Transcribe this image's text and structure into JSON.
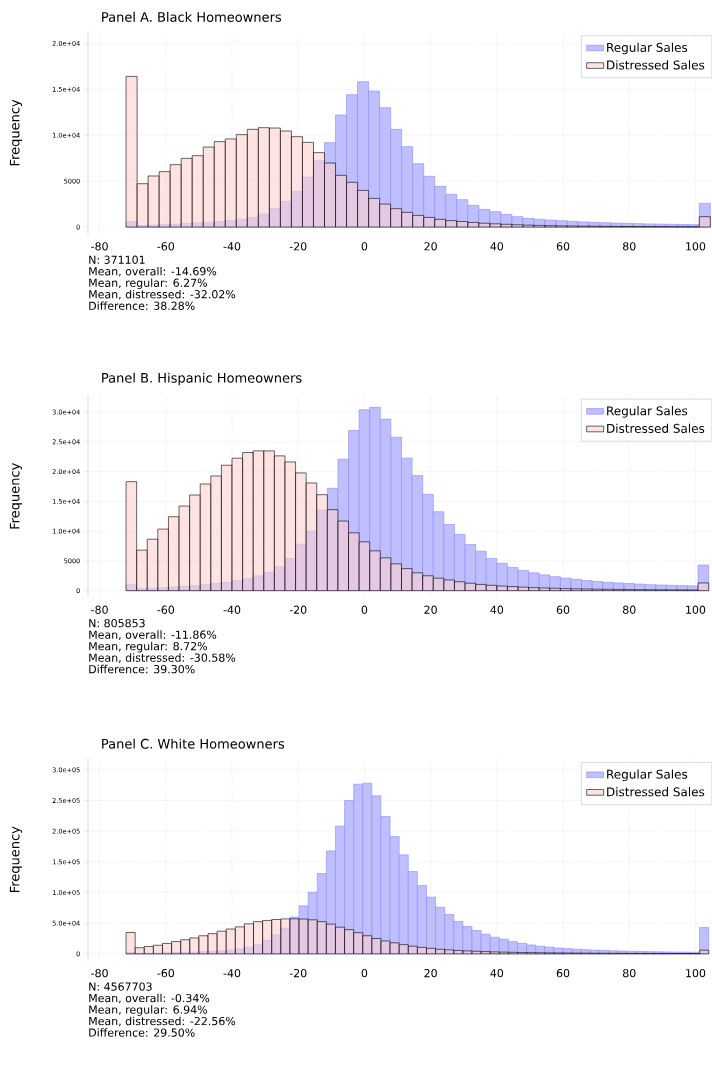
{
  "chart_data": [
    {
      "type": "histogram",
      "title": "Panel A. Black Homeowners",
      "ylabel": "Frequency",
      "bins": [
        -72,
        -68.67,
        -65.34,
        -62.01,
        -58.68,
        -55.35,
        -52.02,
        -48.69,
        -45.36,
        -42.03,
        -38.7,
        -35.37,
        -32.04,
        -28.71,
        -25.38,
        -22.05,
        -18.72,
        -15.39,
        -12.06,
        -8.73,
        -5.4,
        -2.07,
        1.26,
        4.59,
        7.92,
        11.25,
        14.58,
        17.91,
        21.24,
        24.57,
        27.9,
        31.23,
        34.56,
        37.89,
        41.22,
        44.55,
        47.88,
        51.21,
        54.54,
        57.87,
        61.2,
        64.53,
        67.86,
        71.19,
        74.52,
        77.85,
        81.18,
        84.51,
        87.84,
        91.17,
        94.5,
        97.83,
        101.16,
        104.49
      ],
      "series": [
        {
          "name": "Regular Sales",
          "color": "#bfbfff",
          "values": [
            600,
            180,
            220,
            270,
            320,
            380,
            450,
            520,
            600,
            700,
            840,
            1050,
            1420,
            2030,
            2800,
            3890,
            5450,
            7230,
            9190,
            12200,
            14410,
            15830,
            14810,
            13000,
            10640,
            8750,
            6900,
            5520,
            4430,
            3560,
            2980,
            2360,
            1920,
            1670,
            1380,
            1130,
            940,
            840,
            760,
            690,
            620,
            560,
            510,
            470,
            430,
            400,
            370,
            340,
            320,
            300,
            280,
            270,
            2580
          ]
        },
        {
          "name": "Distressed Sales",
          "color": "#ffd0d0",
          "values": [
            16400,
            4720,
            5560,
            6030,
            6790,
            7480,
            7770,
            8710,
            9300,
            9590,
            10060,
            10640,
            10820,
            10780,
            10460,
            9840,
            9220,
            8100,
            6970,
            5630,
            4870,
            3990,
            3120,
            2500,
            2000,
            1600,
            1270,
            1050,
            840,
            700,
            600,
            500,
            420,
            350,
            300,
            250,
            210,
            180,
            150,
            130,
            110,
            100,
            90,
            80,
            70,
            60,
            55,
            50,
            45,
            40,
            35,
            30,
            1130
          ]
        }
      ],
      "xlim": [
        -83.5,
        105
      ],
      "xticks": [
        -80,
        -60,
        -40,
        -20,
        0,
        20,
        40,
        60,
        80,
        100
      ],
      "ylim": [
        -800,
        21300
      ],
      "yticks": [
        0,
        5000,
        {
          "value": 10000,
          "label": "1.0e+04"
        },
        {
          "value": 15000,
          "label": "1.5e+04"
        },
        {
          "value": 20000,
          "label": "2.0e+04"
        }
      ],
      "grid": true,
      "legend": "top right",
      "annotations": [
        "N: 371101",
        "Mean, overall: -14.69%",
        "Mean, regular: 6.27%",
        "Mean, distressed: -32.02%",
        "Difference: 38.28%"
      ]
    },
    {
      "type": "histogram",
      "title": "Panel B. Hispanic Homeowners",
      "ylabel": "Frequency",
      "bins": [
        -72,
        -68.8,
        -65.6,
        -62.4,
        -59.2,
        -56,
        -52.8,
        -49.6,
        -46.4,
        -43.2,
        -40,
        -36.8,
        -33.6,
        -30.4,
        -27.2,
        -24,
        -20.8,
        -17.6,
        -14.4,
        -11.2,
        -8,
        -4.8,
        -1.6,
        1.6,
        4.8,
        8,
        11.2,
        14.4,
        17.6,
        20.8,
        24,
        27.2,
        30.4,
        33.6,
        36.8,
        40,
        43.2,
        46.4,
        49.6,
        52.8,
        56,
        59.2,
        62.4,
        65.6,
        68.8,
        72,
        75.2,
        78.4,
        81.6,
        84.8,
        88,
        91.2,
        94.4,
        97.6,
        100.8,
        104
      ],
      "series": [
        {
          "name": "Regular Sales",
          "color": "#bfbfff",
          "values": [
            1000,
            350,
            420,
            500,
            600,
            700,
            850,
            1000,
            1200,
            1400,
            1700,
            2000,
            2500,
            3100,
            4000,
            5390,
            7810,
            10000,
            13540,
            17190,
            22080,
            26910,
            30390,
            30790,
            28820,
            25790,
            22250,
            19330,
            16180,
            13260,
            11120,
            9440,
            7750,
            6630,
            5390,
            4600,
            3900,
            3400,
            3000,
            2650,
            2350,
            2100,
            1900,
            1700,
            1550,
            1400,
            1300,
            1200,
            1100,
            1000,
            950,
            900,
            850,
            800,
            4300
          ]
        },
        {
          "name": "Distressed Sales",
          "color": "#ffd0d0",
          "values": [
            18310,
            6800,
            8650,
            10340,
            12420,
            14210,
            16070,
            17920,
            19270,
            21070,
            22250,
            23200,
            23480,
            23480,
            22640,
            21630,
            19780,
            18090,
            16120,
            13600,
            11690,
            9720,
            8200,
            6690,
            5510,
            4500,
            3700,
            3000,
            2500,
            2100,
            1800,
            1500,
            1250,
            1050,
            900,
            780,
            680,
            590,
            510,
            450,
            400,
            350,
            310,
            280,
            250,
            230,
            210,
            190,
            170,
            160,
            150,
            140,
            130,
            120,
            1300
          ]
        }
      ],
      "xlim": [
        -83.5,
        105
      ],
      "xticks": [
        -80,
        -60,
        -40,
        -20,
        0,
        20,
        40,
        60,
        80,
        100
      ],
      "ylim": [
        -1200,
        32900
      ],
      "yticks": [
        0,
        5000,
        {
          "value": 10000,
          "label": "1.0e+04"
        },
        {
          "value": 15000,
          "label": "1.5e+04"
        },
        {
          "value": 20000,
          "label": "2.0e+04"
        },
        {
          "value": 25000,
          "label": "2.5e+04"
        },
        {
          "value": 30000,
          "label": "3.0e+04"
        }
      ],
      "grid": true,
      "legend": "top right",
      "annotations": [
        "N: 805853",
        "Mean, overall: -11.86%",
        "Mean, regular: 8.72%",
        "Mean, distressed: -30.58%",
        "Difference: 39.30%"
      ]
    },
    {
      "type": "histogram",
      "title": "Panel C. White Homeowners",
      "ylabel": "Frequency",
      "bins": [
        -72,
        -69.25,
        -66.5,
        -63.75,
        -61,
        -58.25,
        -55.5,
        -52.75,
        -50,
        -47.25,
        -44.5,
        -41.75,
        -39,
        -36.25,
        -33.5,
        -30.75,
        -28,
        -25.25,
        -22.5,
        -19.75,
        -17,
        -14.25,
        -11.5,
        -8.75,
        -6,
        -3.25,
        -0.5,
        2.25,
        5,
        7.75,
        10.5,
        13.25,
        16,
        18.75,
        21.5,
        24.25,
        27,
        29.75,
        32.5,
        35.25,
        38,
        40.75,
        43.5,
        46.25,
        49,
        51.75,
        54.5,
        57.25,
        60,
        62.75,
        65.5,
        68.25,
        71,
        73.75,
        76.5,
        79.25,
        82,
        84.75,
        87.5,
        90.25,
        93,
        95.75,
        98.5,
        101.25,
        104
      ],
      "series": [
        {
          "name": "Regular Sales",
          "color": "#bfbfff",
          "values": [
            2000,
            1000,
            1200,
            1400,
            1700,
            2000,
            2400,
            2900,
            3500,
            4200,
            5000,
            6000,
            8000,
            11000,
            15000,
            22000,
            31000,
            42000,
            60000,
            78300,
            100500,
            131000,
            167900,
            208200,
            250000,
            276600,
            278300,
            257600,
            223900,
            191300,
            161400,
            134200,
            111400,
            92400,
            76100,
            64100,
            52700,
            44600,
            38000,
            32100,
            27200,
            23900,
            20000,
            17000,
            14500,
            12500,
            11000,
            9500,
            8500,
            7500,
            6800,
            6100,
            5500,
            5000,
            4600,
            4200,
            3900,
            3600,
            3300,
            3100,
            2900,
            2700,
            2500,
            42900
          ]
        },
        {
          "name": "Distressed Sales",
          "color": "#ffd0d0",
          "values": [
            34800,
            10000,
            12000,
            14000,
            17000,
            20000,
            23000,
            26000,
            29500,
            33000,
            37000,
            40500,
            44000,
            49000,
            52500,
            54500,
            56000,
            57000,
            57100,
            56800,
            55500,
            52500,
            48500,
            43500,
            39500,
            34500,
            29500,
            25000,
            21000,
            18000,
            15000,
            12500,
            10500,
            9000,
            7500,
            6500,
            5500,
            4800,
            4200,
            3700,
            3200,
            2800,
            2500,
            2200,
            2000,
            1800,
            1600,
            1500,
            1400,
            1300,
            1200,
            1100,
            1000,
            950,
            900,
            850,
            800,
            750,
            700,
            650,
            600,
            550,
            500,
            6000
          ]
        }
      ],
      "xlim": [
        -83.5,
        105
      ],
      "xticks": [
        -80,
        -60,
        -40,
        -20,
        0,
        20,
        40,
        60,
        80,
        100
      ],
      "ylim": [
        -12000,
        319000
      ],
      "yticks": [
        0,
        {
          "value": 50000,
          "label": "5.0e+04"
        },
        {
          "value": 100000,
          "label": "1.0e+05"
        },
        {
          "value": 150000,
          "label": "1.5e+05"
        },
        {
          "value": 200000,
          "label": "2.0e+05"
        },
        {
          "value": 250000,
          "label": "2.5e+05"
        },
        {
          "value": 300000,
          "label": "3.0e+05"
        }
      ],
      "grid": true,
      "legend": "top right",
      "annotations": [
        "N: 4567703",
        "Mean, overall: -0.34%",
        "Mean, regular: 6.94%",
        "Mean, distressed: -22.56%",
        "Difference: 29.50%"
      ]
    }
  ]
}
